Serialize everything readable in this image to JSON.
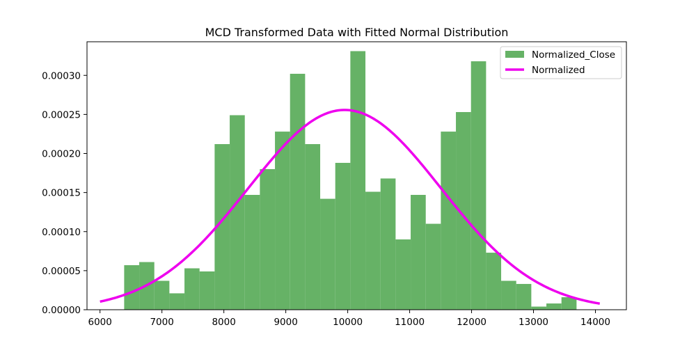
{
  "chart_data": {
    "type": "bar",
    "title": "MCD Transformed Data with Fitted Normal Distribution",
    "xlabel": "",
    "ylabel": "",
    "xlim": [
      5790,
      14500
    ],
    "ylim": [
      0,
      0.000343
    ],
    "grid": false,
    "legend_position": "top-right",
    "x_ticks": [
      {
        "value": 6000,
        "label": "6000"
      },
      {
        "value": 7000,
        "label": "7000"
      },
      {
        "value": 8000,
        "label": "8000"
      },
      {
        "value": 9000,
        "label": "9000"
      },
      {
        "value": 10000,
        "label": "10000"
      },
      {
        "value": 11000,
        "label": "11000"
      },
      {
        "value": 12000,
        "label": "12000"
      },
      {
        "value": 13000,
        "label": "13000"
      },
      {
        "value": 14000,
        "label": "14000"
      }
    ],
    "y_ticks": [
      {
        "value": 0,
        "label": "0.00000"
      },
      {
        "value": 5e-05,
        "label": "0.00005"
      },
      {
        "value": 0.0001,
        "label": "0.00010"
      },
      {
        "value": 0.00015,
        "label": "0.00015"
      },
      {
        "value": 0.0002,
        "label": "0.00020"
      },
      {
        "value": 0.00025,
        "label": "0.00025"
      },
      {
        "value": 0.0003,
        "label": "0.00030"
      }
    ],
    "histogram": {
      "name": "Normalized_Close",
      "color": "#66b266",
      "bin_start": 6390,
      "bin_width": 243.5,
      "values": [
        5.7e-05,
        6.1e-05,
        3.7e-05,
        2.1e-05,
        5.3e-05,
        4.9e-05,
        0.000212,
        0.000249,
        0.000147,
        0.00018,
        0.000228,
        0.000302,
        0.000212,
        0.000142,
        0.000188,
        0.000331,
        0.000151,
        0.000168,
        9e-05,
        0.000147,
        0.00011,
        0.000228,
        0.000253,
        0.000318,
        7.3e-05,
        3.7e-05,
        3.3e-05,
        4e-06,
        8e-06,
        1.6e-05
      ]
    },
    "curve": {
      "name": "Normalized",
      "type": "normal_pdf",
      "color": "#ee00ee",
      "mean": 9950,
      "std": 1560,
      "x_range": [
        6000,
        14070
      ]
    }
  }
}
